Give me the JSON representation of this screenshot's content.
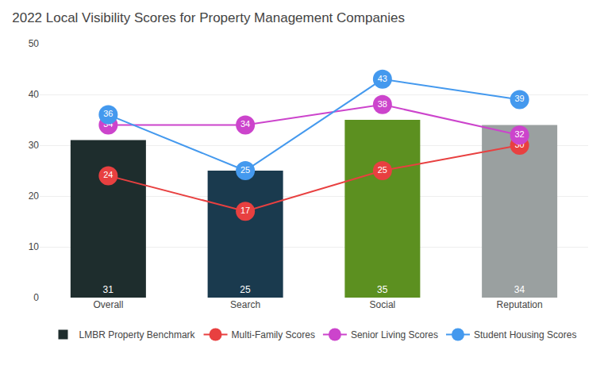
{
  "chart_data": {
    "type": "bar",
    "title": "2022 Local Visibility Scores for Property Management Companies",
    "categories": [
      "Overall",
      "Search",
      "Social",
      "Reputation"
    ],
    "series": [
      {
        "name": "LMBR Property Benchmark",
        "type": "bar",
        "colors": [
          "#1e2d2d",
          "#1a3a4e",
          "#5c9020",
          "#9aa0a0"
        ],
        "values": [
          31,
          25,
          35,
          34
        ]
      },
      {
        "name": "Multi-Family Scores",
        "type": "line",
        "color": "#e84040",
        "marker": "circle",
        "values": [
          24,
          17,
          25,
          30
        ]
      },
      {
        "name": "Senior Living Scores",
        "type": "line",
        "color": "#cc44cc",
        "marker": "circle",
        "values": [
          34,
          34,
          38,
          32
        ]
      },
      {
        "name": "Student Housing Scores",
        "type": "line",
        "color": "#4499ee",
        "marker": "circle",
        "values": [
          36,
          25,
          43,
          39
        ]
      }
    ],
    "ylim": [
      0,
      50
    ],
    "yticks": [
      0,
      10,
      20,
      30,
      40,
      50
    ],
    "grid": true,
    "legend": "bottom",
    "data_labels": true
  }
}
